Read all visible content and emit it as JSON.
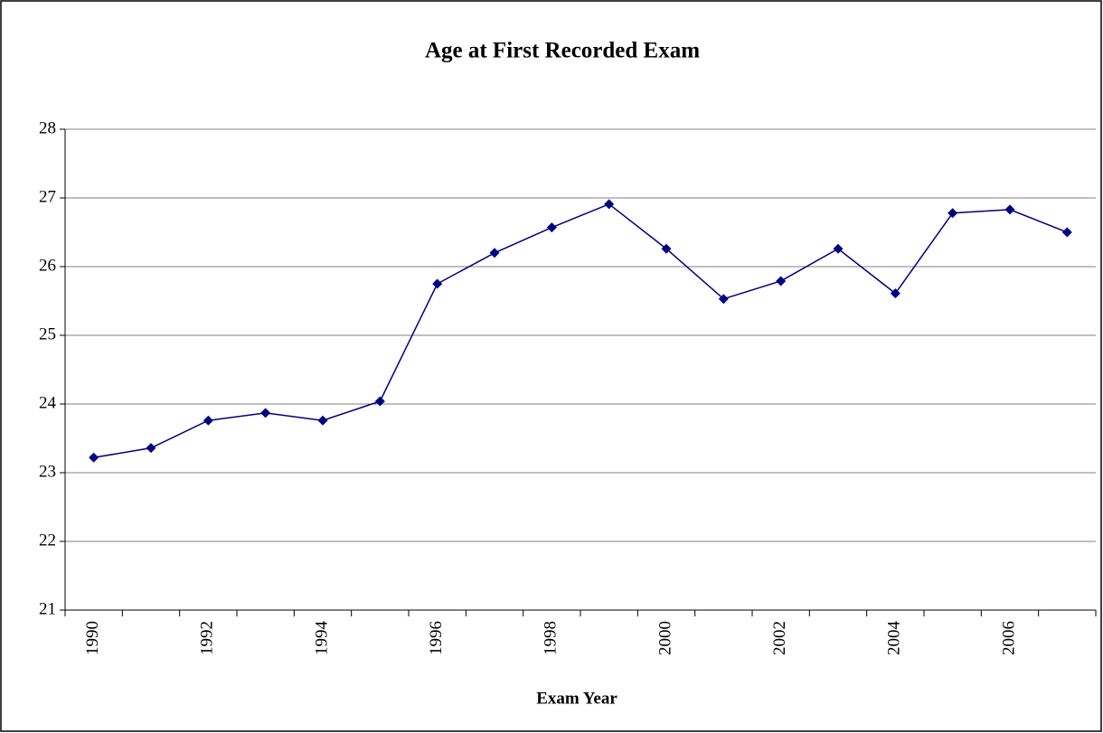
{
  "chart_data": {
    "type": "line",
    "title": "Age at First Recorded Exam",
    "x_label": "Exam Year",
    "categories": [
      "1990",
      null,
      "1992",
      null,
      "1994",
      null,
      "1996",
      null,
      "1998",
      null,
      "2000",
      null,
      "2002",
      null,
      "2004",
      null,
      "2006",
      null
    ],
    "series": [
      {
        "color": "#000080",
        "values": [
          23.22,
          23.36,
          23.76,
          23.87,
          23.76,
          24.04,
          25.75,
          26.2,
          26.57,
          26.91,
          26.26,
          25.53,
          25.79,
          26.26,
          25.61,
          26.78,
          26.83,
          26.5
        ]
      }
    ],
    "ylim": [
      21,
      28
    ],
    "yticks": [
      21,
      22,
      23,
      24,
      25,
      26,
      27,
      28
    ],
    "grid": true
  }
}
